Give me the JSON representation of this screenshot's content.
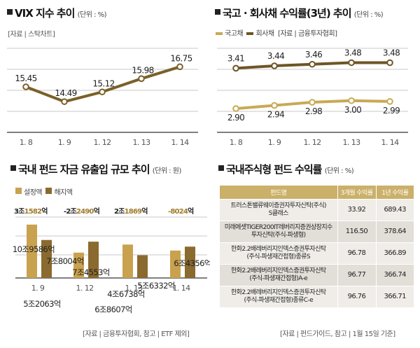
{
  "vix": {
    "title": "VIX 지수 추이",
    "unit": "(단위 : %)",
    "source": "[자료 | 스탁차트]"
  },
  "bond": {
    "title": "국고 · 회사채 수익률(3년) 추이",
    "unit": "(단위 : %)",
    "legend": [
      {
        "name": "국고채",
        "color": "#c8aa55"
      },
      {
        "name": "회사채",
        "color": "#6e5526"
      }
    ],
    "source": "[자료 | 금융투자협회]"
  },
  "fundflow": {
    "title": "국내 펀드 자금 유출입 규모 추이",
    "unit": "(단위 : 원)",
    "legend": [
      {
        "name": "설정액",
        "color": "#c9a24f"
      },
      {
        "name": "해지액",
        "color": "#8a6a2e"
      }
    ],
    "net": [
      {
        "pre": "3조",
        "num": "1582",
        "post": "억"
      },
      {
        "pre": "-2조",
        "num": "2490",
        "post": "억"
      },
      {
        "pre": "2조",
        "num": "1869",
        "post": "억"
      },
      {
        "pre": "",
        "num": "-8024",
        "post": "억"
      }
    ],
    "source": "[자료 | 금융투자협회, 참고 | ETF 제외]"
  },
  "funds": {
    "title": "국내주식형 펀드 수익률",
    "unit": "(단위 : %)",
    "headers": [
      "펀드명",
      "3개월 수익률",
      "1년 수익률"
    ],
    "rows": [
      {
        "name1": "트러스톤밸류웨이증권자투자신탁(주식)",
        "name2": "S클래스",
        "m3": "33.92",
        "y1": "689.43"
      },
      {
        "name1": "미래에셋TIGER200IT레버리지증권상장지수",
        "name2": "투자신탁(주식-파생형)",
        "m3": "116.50",
        "y1": "378.64"
      },
      {
        "name1": "한화2.2배레버리지인덱스증권투자신탁",
        "name2": "(주식-파생재간접형)종류S",
        "m3": "96.78",
        "y1": "366.89"
      },
      {
        "name1": "한화2.2배레버리지인덱스증권투자신탁",
        "name2": "(주식-파생재간접형)A-e",
        "m3": "96.77",
        "y1": "366.74"
      },
      {
        "name1": "한화2.2배레버리지인덱스증권투자신탁",
        "name2": "(주식-파생재간접형)종류C-e",
        "m3": "96.76",
        "y1": "366.71"
      }
    ],
    "source": "[자료 | 펀드가이드, 참고 | 1월 15일 기준]"
  },
  "chart_data": [
    {
      "type": "line",
      "title": "VIX 지수 추이",
      "categories": [
        "1. 8",
        "1. 9",
        "1. 12",
        "1. 13",
        "1. 14"
      ],
      "series": [
        {
          "name": "VIX",
          "values": [
            15.45,
            14.49,
            15.12,
            15.98,
            16.75
          ],
          "labels": [
            "15.45",
            "14.49",
            "15.12",
            "15.98",
            "16.75"
          ],
          "color": "#7a6128"
        }
      ],
      "ylim": [
        12.5,
        18.4
      ],
      "grid": true
    },
    {
      "type": "line",
      "title": "국고 · 회사채 수익률(3년) 추이",
      "categories": [
        "1. 8",
        "1. 9",
        "1. 12",
        "1. 13",
        "1. 14"
      ],
      "series": [
        {
          "name": "회사채",
          "values": [
            3.41,
            3.44,
            3.46,
            3.48,
            3.48
          ],
          "labels": [
            "3.41",
            "3.44",
            "3.46",
            "3.48",
            "3.48"
          ],
          "color": "#6e5526"
        },
        {
          "name": "국고채",
          "values": [
            2.9,
            2.94,
            2.98,
            3.0,
            2.99
          ],
          "labels": [
            "2.90",
            "2.94",
            "2.98",
            "3.00",
            "2.99"
          ],
          "color": "#c8aa55"
        }
      ],
      "ylim": [
        2.6,
        3.75
      ],
      "grid": true,
      "legend": "top-left"
    },
    {
      "type": "bar",
      "title": "국내 펀드 자금 유출입 규모 추이",
      "categories": [
        "1. 9",
        "1. 12",
        "1. 13",
        "1. 14"
      ],
      "series": [
        {
          "name": "설정액",
          "values": [
            10.9586,
            5.2063,
            6.8607,
            5.6332
          ],
          "labels": [
            "10조9586억",
            "5조2063억",
            "6조8607억",
            "5조6332억"
          ],
          "color": "#c9a24f"
        },
        {
          "name": "해지액",
          "values": [
            7.8004,
            7.4553,
            4.6738,
            6.4356
          ],
          "labels": [
            "7조8004억",
            "7조4553억",
            "4조6738억",
            "6조4356억"
          ],
          "color": "#8a6a2e"
        }
      ],
      "unit": "조원",
      "ylim": [
        0,
        11.5
      ],
      "grid": true,
      "legend": "top-left"
    },
    {
      "type": "table",
      "title": "국내주식형 펀드 수익률",
      "columns": [
        "펀드명",
        "3개월 수익률",
        "1년 수익률"
      ],
      "rows": [
        [
          "트러스톤밸류웨이증권자투자신탁(주식) S클래스",
          33.92,
          689.43
        ],
        [
          "미래에셋TIGER200IT레버리지증권상장지수투자신탁(주식-파생형)",
          116.5,
          378.64
        ],
        [
          "한화2.2배레버리지인덱스증권투자신탁(주식-파생재간접형)종류S",
          96.78,
          366.89
        ],
        [
          "한화2.2배레버리지인덱스증권투자신탁(주식-파생재간접형)A-e",
          96.77,
          366.74
        ],
        [
          "한화2.2배레버리지인덱스증권투자신탁(주식-파생재간접형)종류C-e",
          96.76,
          366.71
        ]
      ]
    }
  ]
}
